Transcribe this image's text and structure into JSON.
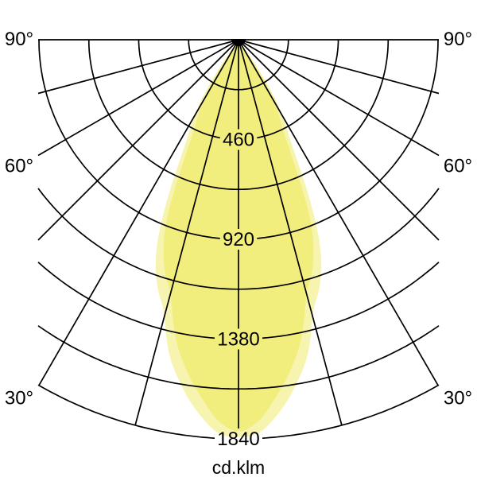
{
  "page": {
    "background": "#ffffff"
  },
  "chart_data": {
    "type": "polar",
    "title": "",
    "unit_label": "cd.klm",
    "ring_step": 230,
    "ring_values": [
      230,
      460,
      690,
      920,
      1150,
      1380,
      1610,
      1840
    ],
    "labeled_rings": [
      460,
      920,
      1380,
      1840
    ],
    "max_ring": 1840,
    "angle_grid_step_deg": 15,
    "angle_grid_deg": [
      0,
      15,
      30,
      45,
      60,
      75,
      90
    ],
    "angle_labels": [
      {
        "text": "90°",
        "deg": 90,
        "side": "left"
      },
      {
        "text": "90°",
        "deg": 90,
        "side": "right"
      },
      {
        "text": "60°",
        "deg": 60,
        "side": "left"
      },
      {
        "text": "60°",
        "deg": 60,
        "side": "right"
      },
      {
        "text": "30°",
        "deg": 30,
        "side": "left"
      },
      {
        "text": "30°",
        "deg": 30,
        "side": "right"
      }
    ],
    "colors": {
      "grid_line": "#000000",
      "main_lobe": "#f1ee7d",
      "halo_lobe": "#f7f4b0",
      "background": "#ffffff"
    },
    "series": [
      {
        "name": "halo",
        "color": "#f7f4b0",
        "points_deg_cd_klm": [
          [
            35,
            0
          ],
          [
            34,
            150
          ],
          [
            32.5,
            280
          ],
          [
            30,
            410
          ],
          [
            27,
            540
          ],
          [
            24.5,
            760
          ],
          [
            22.5,
            950
          ],
          [
            20.5,
            1090
          ],
          [
            18,
            1205
          ],
          [
            15.5,
            1295
          ],
          [
            12.5,
            1480
          ],
          [
            9.5,
            1610
          ],
          [
            6.5,
            1720
          ],
          [
            3,
            1815
          ],
          [
            0,
            1830
          ]
        ]
      },
      {
        "name": "main",
        "color": "#f1ee7d",
        "points_deg_cd_klm": [
          [
            34,
            0
          ],
          [
            33,
            120
          ],
          [
            31.5,
            240
          ],
          [
            29,
            360
          ],
          [
            26,
            480
          ],
          [
            24,
            650
          ],
          [
            22,
            870
          ],
          [
            20,
            1010
          ],
          [
            17.5,
            1125
          ],
          [
            15,
            1215
          ],
          [
            12,
            1400
          ],
          [
            9,
            1540
          ],
          [
            6,
            1655
          ],
          [
            3,
            1760
          ],
          [
            0,
            1805
          ]
        ]
      }
    ]
  }
}
